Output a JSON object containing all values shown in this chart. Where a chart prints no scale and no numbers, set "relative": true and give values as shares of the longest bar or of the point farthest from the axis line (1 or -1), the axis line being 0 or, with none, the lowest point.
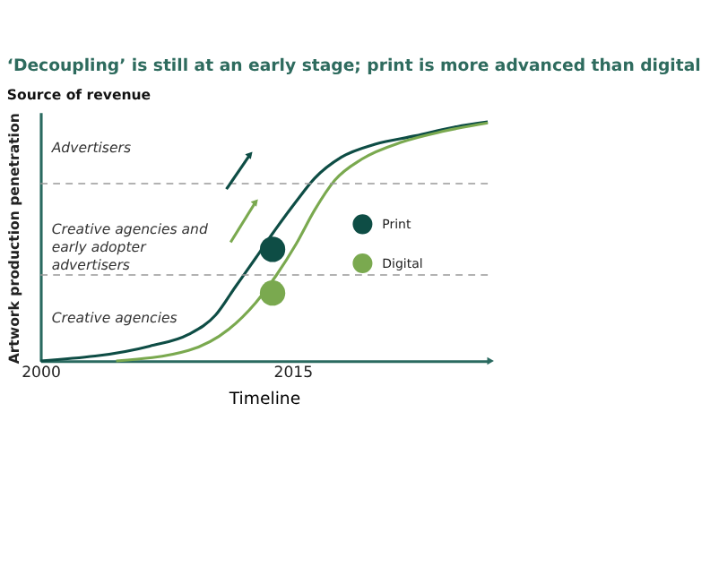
{
  "chart_data": {
    "type": "line",
    "title": "‘Decoupling’ is still at an early stage; print is more advanced than digital",
    "subtitle": "Source of revenue",
    "xlabel": "Timeline",
    "ylabel": "Artwork production penetration",
    "relative": true,
    "xlim": [
      2000,
      2026.6
    ],
    "xticks": [
      2000,
      2015
    ],
    "grid": false,
    "legend": "right",
    "line_style": "solid",
    "series": [
      {
        "type": "line",
        "color": "#0e4d45",
        "x": [
          2000,
          2006.5,
          2008.8,
          2010.4,
          2011.6,
          2012.8,
          2013.8,
          2015.2,
          2016.3,
          2017.9,
          2019.9,
          2022.3,
          2024.6,
          2026.6
        ],
        "values": [
          0,
          0.062,
          0.111,
          0.191,
          0.311,
          0.431,
          0.533,
          0.667,
          0.764,
          0.853,
          0.907,
          0.942,
          0.978,
          1.0
        ]
      },
      {
        "type": "line",
        "color": "#7aa94f",
        "x": [
          2004.5,
          2008.8,
          2011.2,
          2012.8,
          2014.0,
          2015.2,
          2016.3,
          2017.5,
          2019.1,
          2021.5,
          2023.9,
          2026.6
        ],
        "values": [
          0,
          0.044,
          0.133,
          0.244,
          0.356,
          0.489,
          0.631,
          0.756,
          0.844,
          0.916,
          0.96,
          0.996
        ]
      },
      {
        "type": "scatter",
        "name": "Print",
        "color": "#0e4d45",
        "x": [
          2013.8
        ],
        "values": [
          0.467
        ]
      },
      {
        "type": "scatter",
        "name": "Digital",
        "color": "#7aa94f",
        "x": [
          2013.8
        ],
        "values": [
          0.284
        ]
      }
    ],
    "ref_lines": [
      {
        "axis": "y",
        "value": 0.742,
        "color": "#999999",
        "line_style": "dashed"
      },
      {
        "axis": "y",
        "value": 0.36,
        "color": "#999999",
        "line_style": "dashed"
      }
    ],
    "annotations": [
      "Advertisers",
      "Creative agencies and\nearly adopter\nadvertisers",
      "Creative agencies"
    ]
  }
}
